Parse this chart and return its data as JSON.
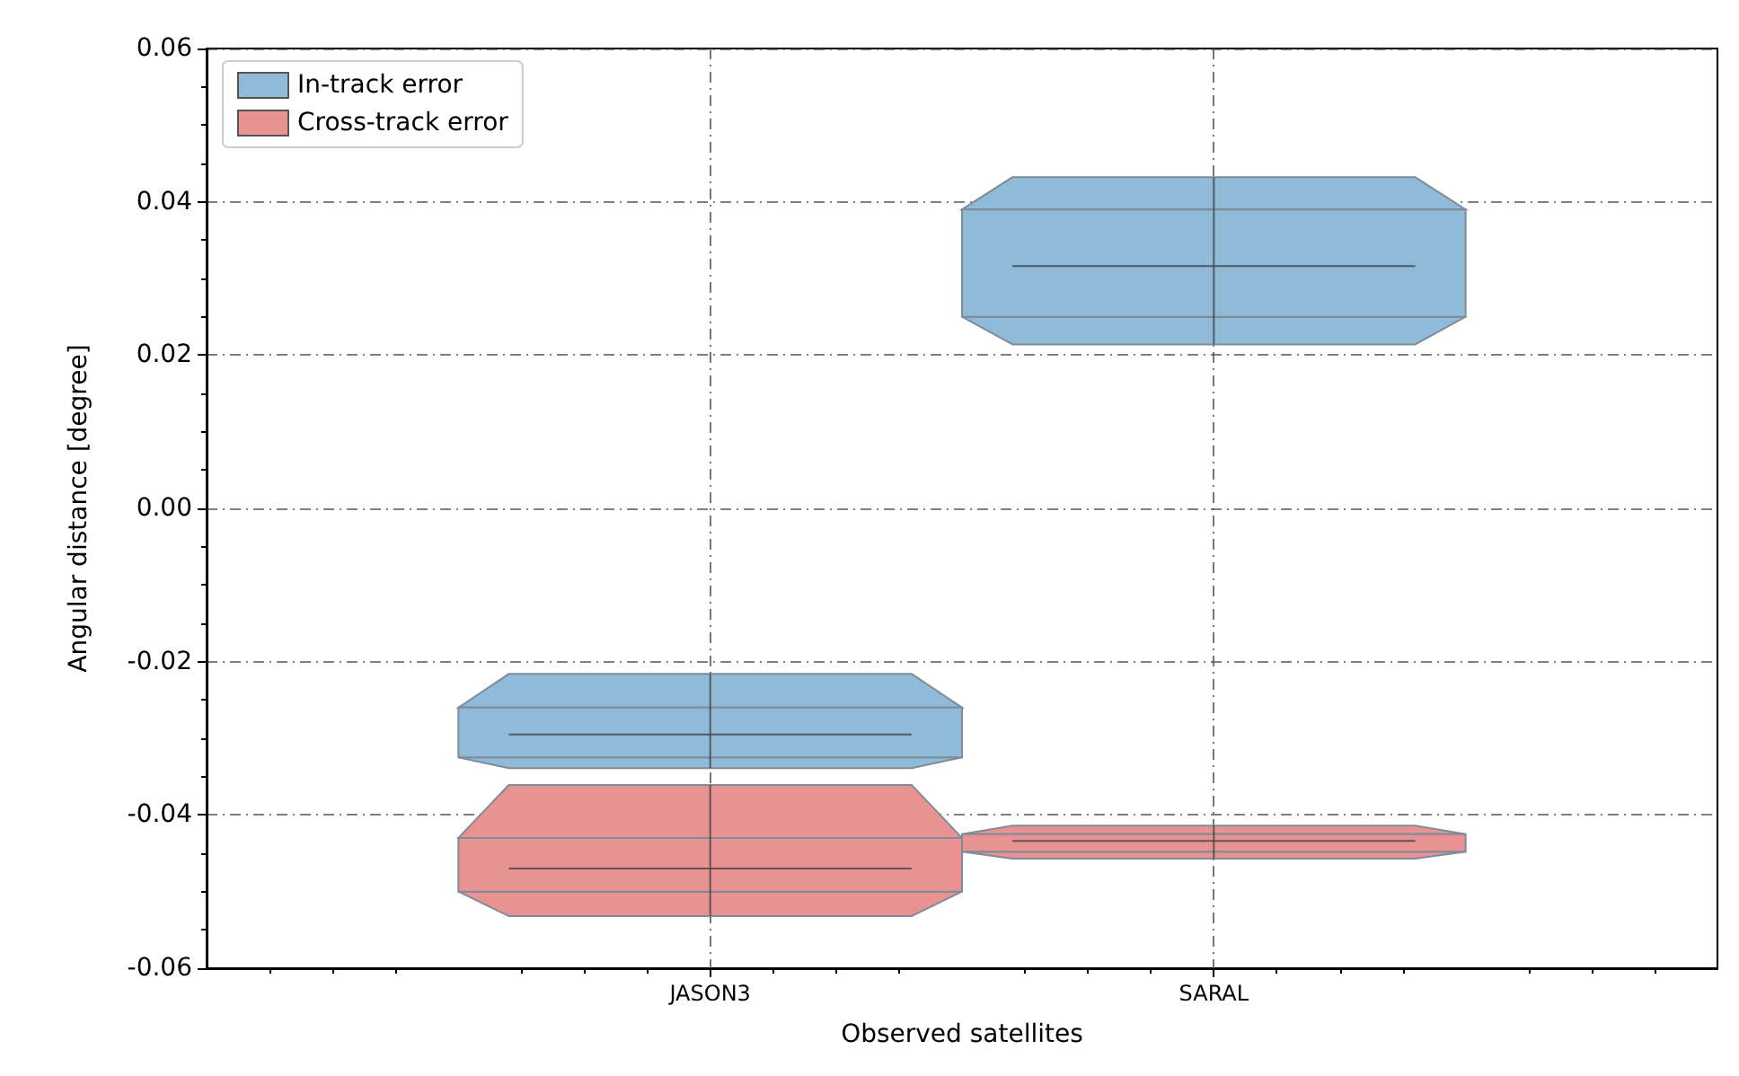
{
  "chart_data": {
    "type": "box",
    "xlabel": "Observed satellites",
    "ylabel": "Angular distance [degree]",
    "categories": [
      "JASON3",
      "SARAL"
    ],
    "ylim": [
      -0.06,
      0.06
    ],
    "yticks": [
      -0.06,
      -0.04,
      -0.02,
      {
        "value": 0,
        "label": "0.00"
      },
      0.02,
      0.04,
      0.06
    ],
    "grid": true,
    "legend": "top left",
    "series": [
      {
        "name": "In-track error",
        "color": "#8fbbd9",
        "boxes": [
          {
            "low": -0.0339,
            "q1": -0.0325,
            "median": -0.0295,
            "q3": -0.026,
            "high": -0.0216
          },
          {
            "low": 0.0214,
            "q1": 0.025,
            "median": 0.0316,
            "q3": 0.039,
            "high": 0.0432
          }
        ]
      },
      {
        "name": "Cross-track error",
        "color": "#e99292",
        "boxes": [
          {
            "low": -0.0532,
            "q1": -0.05,
            "median": -0.047,
            "q3": -0.043,
            "high": -0.0361
          },
          {
            "low": -0.0457,
            "q1": -0.0448,
            "median": -0.0434,
            "q3": -0.0425,
            "high": -0.0414
          }
        ]
      }
    ]
  }
}
